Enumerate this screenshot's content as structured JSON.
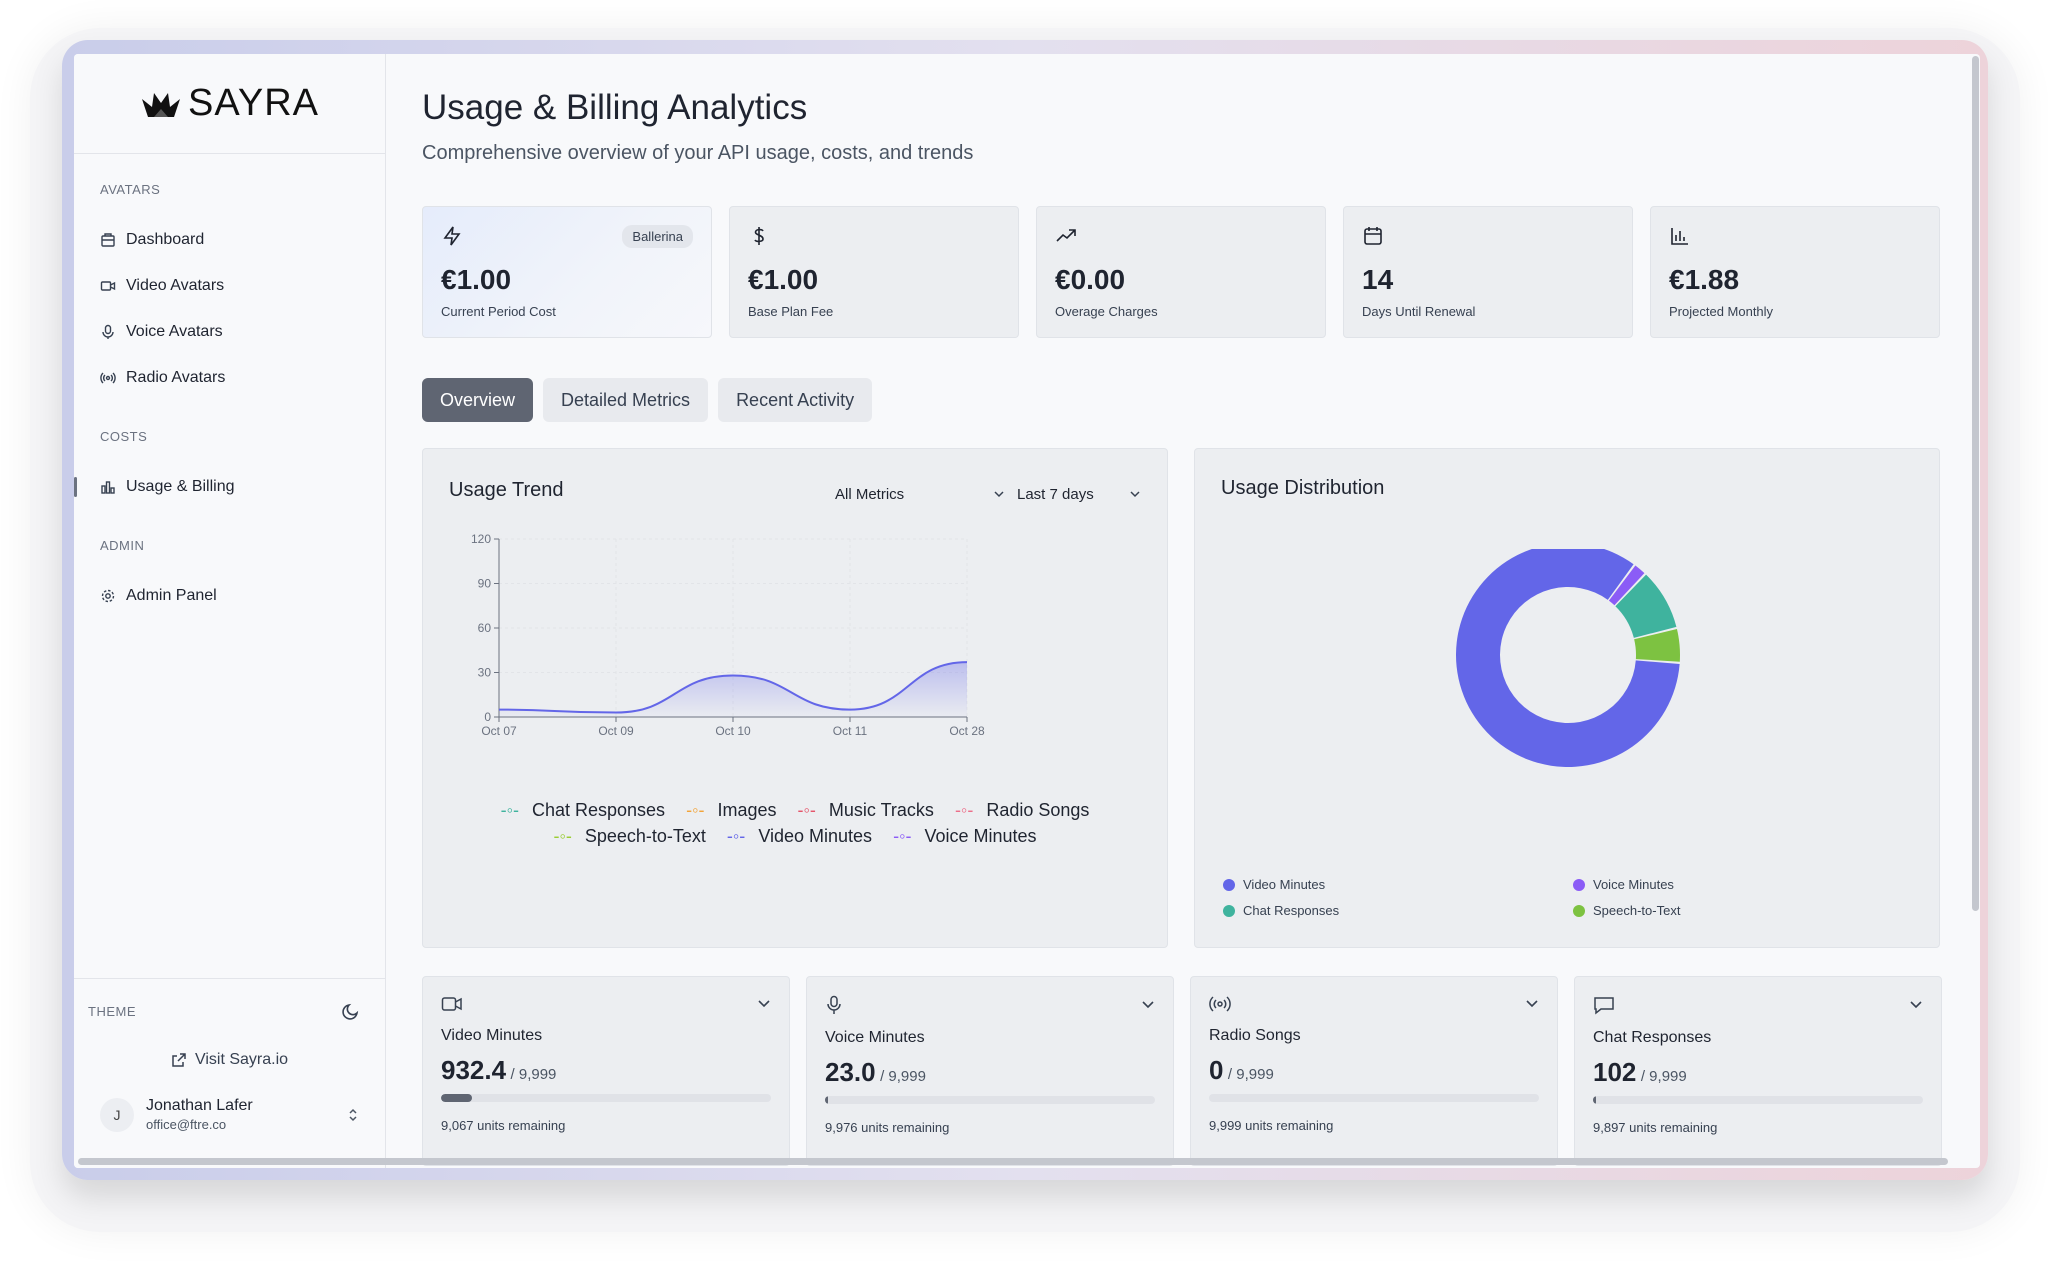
{
  "brand": {
    "name": "SAYRA"
  },
  "sidebar": {
    "sections": [
      {
        "heading": "AVATARS",
        "items": [
          {
            "label": "Dashboard",
            "icon": "dashboard-icon"
          },
          {
            "label": "Video Avatars",
            "icon": "video-icon"
          },
          {
            "label": "Voice Avatars",
            "icon": "microphone-icon"
          },
          {
            "label": "Radio Avatars",
            "icon": "radio-icon"
          }
        ]
      },
      {
        "heading": "COSTS",
        "items": [
          {
            "label": "Usage & Billing",
            "icon": "bar-chart-icon",
            "active": true
          }
        ]
      },
      {
        "heading": "ADMIN",
        "items": [
          {
            "label": "Admin Panel",
            "icon": "gear-icon"
          }
        ]
      }
    ],
    "theme_label": "THEME",
    "visit_label": "Visit Sayra.io",
    "user": {
      "initial": "J",
      "name": "Jonathan Lafer",
      "email": "office@ftre.co"
    }
  },
  "page": {
    "title": "Usage & Billing Analytics",
    "subtitle": "Comprehensive overview of your API usage, costs, and trends"
  },
  "stats": [
    {
      "value": "€1.00",
      "label": "Current Period Cost",
      "badge": "Ballerina",
      "icon": "lightning-icon"
    },
    {
      "value": "€1.00",
      "label": "Base Plan Fee",
      "icon": "dollar-icon"
    },
    {
      "value": "€0.00",
      "label": "Overage Charges",
      "icon": "trending-up-icon"
    },
    {
      "value": "14",
      "label": "Days Until Renewal",
      "icon": "calendar-icon"
    },
    {
      "value": "€1.88",
      "label": "Projected Monthly",
      "icon": "bar-chart-icon"
    }
  ],
  "tabs": [
    "Overview",
    "Detailed Metrics",
    "Recent Activity"
  ],
  "trend": {
    "title": "Usage Trend",
    "metric_select": "All Metrics",
    "range_select": "Last 7 days",
    "legend_row1": [
      "Chat Responses",
      "Images",
      "Music Tracks",
      "Radio Songs"
    ],
    "legend_row2": [
      "Speech-to-Text",
      "Video Minutes",
      "Voice Minutes"
    ]
  },
  "distribution": {
    "title": "Usage Distribution",
    "legend": [
      {
        "label": "Video Minutes",
        "color": "#6366e8"
      },
      {
        "label": "Voice Minutes",
        "color": "#8b5cf6"
      },
      {
        "label": "Chat Responses",
        "color": "#3fb39e"
      },
      {
        "label": "Speech-to-Text",
        "color": "#7dc241"
      }
    ]
  },
  "chart_data": [
    {
      "type": "area",
      "title": "Usage Trend",
      "categories": [
        "Oct 07",
        "Oct 09",
        "Oct 10",
        "Oct 11",
        "Oct 28"
      ],
      "ylim": [
        0,
        120
      ],
      "yticks": [
        "0",
        "30",
        "60",
        "90",
        "120"
      ],
      "series": [
        {
          "name": "Video Minutes",
          "values": [
            5,
            3,
            28,
            5,
            37
          ],
          "color": "#6366e8"
        }
      ],
      "grid": true,
      "legend": "bottom"
    },
    {
      "type": "pie",
      "title": "Usage Distribution",
      "labels": [
        "Video Minutes",
        "Voice Minutes",
        "Chat Responses",
        "Speech-to-Text"
      ],
      "values": [
        84,
        2,
        9,
        5
      ],
      "colors": [
        "#6366e8",
        "#8b5cf6",
        "#3fb39e",
        "#7dc241"
      ],
      "legend": "bottom"
    }
  ],
  "usage_cards": [
    {
      "name": "Video Minutes",
      "value": "932.4",
      "limit": "/ 9,999",
      "remaining": "9,067 units remaining",
      "fraction": 0.093,
      "icon": "video-icon"
    },
    {
      "name": "Voice Minutes",
      "value": "23.0",
      "limit": "/ 9,999",
      "remaining": "9,976 units remaining",
      "fraction": 0.0023,
      "icon": "microphone-icon"
    },
    {
      "name": "Radio Songs",
      "value": "0",
      "limit": "/ 9,999",
      "remaining": "9,999 units remaining",
      "fraction": 0,
      "icon": "radio-icon"
    },
    {
      "name": "Chat Responses",
      "value": "102",
      "limit": "/ 9,999",
      "remaining": "9,897 units remaining",
      "fraction": 0.0102,
      "icon": "chat-icon"
    }
  ]
}
